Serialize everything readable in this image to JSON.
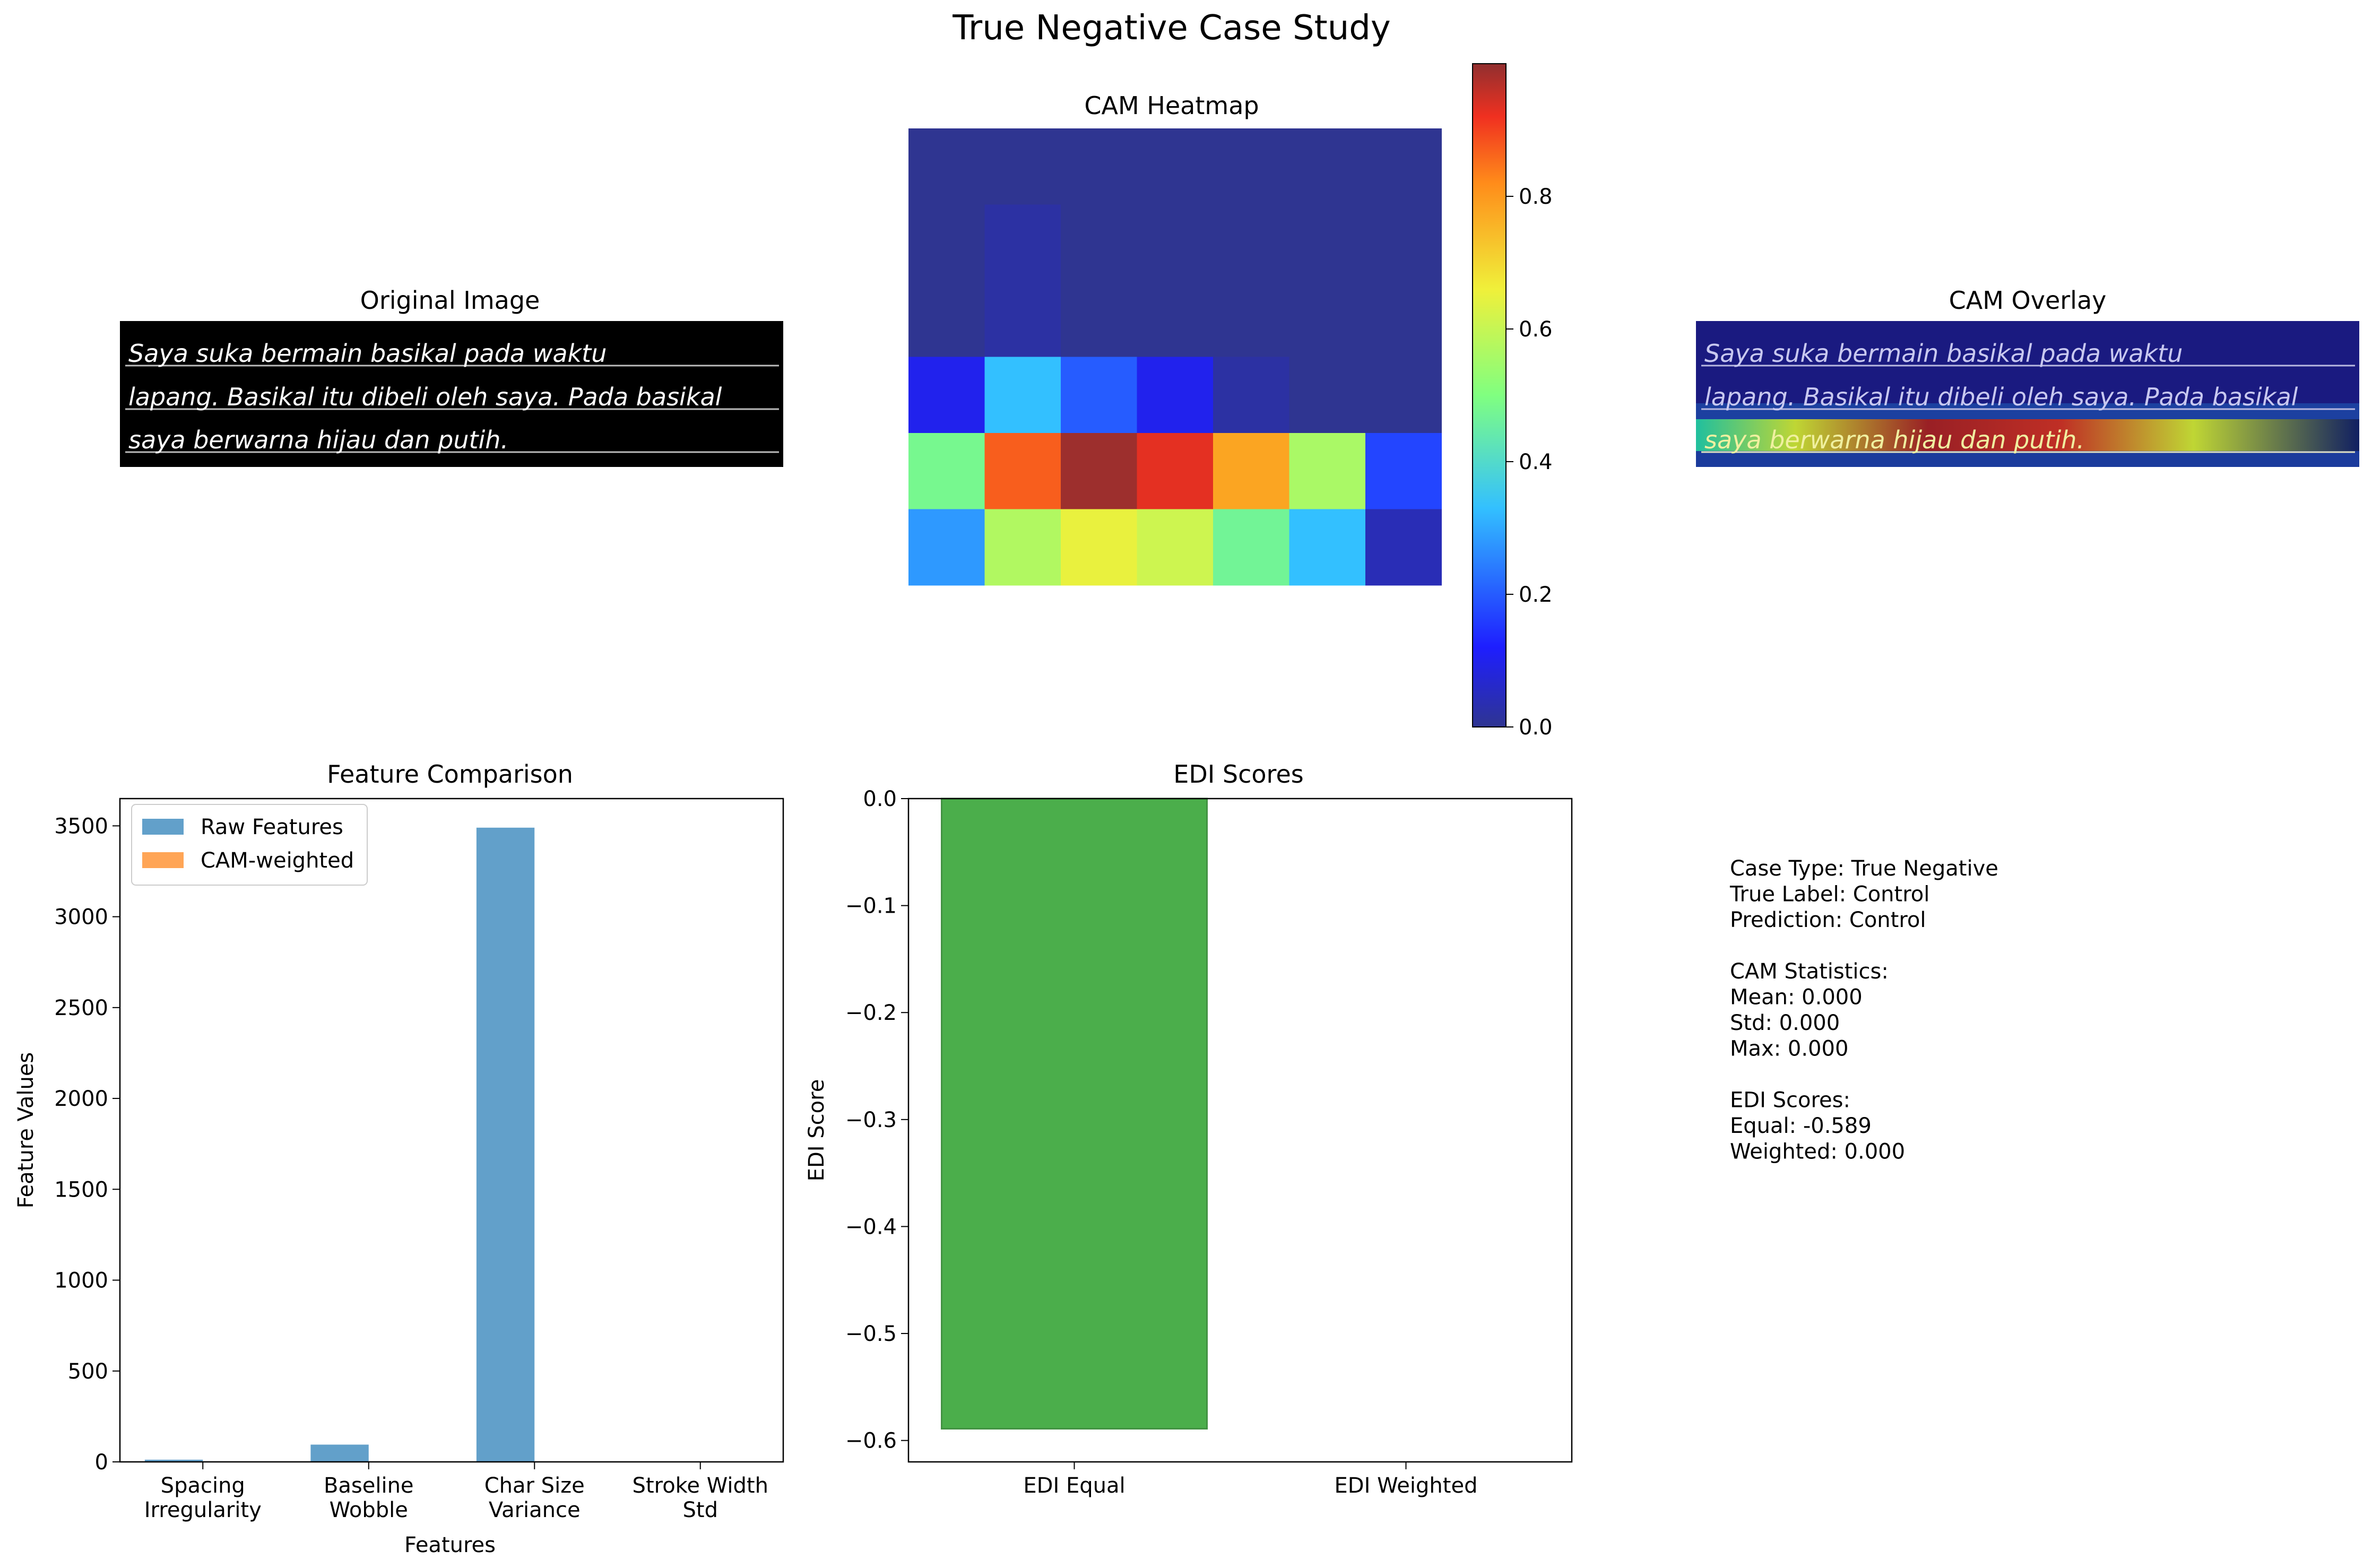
{
  "figure": {
    "suptitle": "True Negative Case Study"
  },
  "original_image": {
    "title": "Original Image",
    "lines": [
      "Saya suka bermain basikal pada waktu",
      "lapang. Basikal itu dibeli oleh saya. Pada basikal",
      "saya berwarna hijau dan putih."
    ]
  },
  "overlay_image": {
    "title": "CAM Overlay"
  },
  "colors": {
    "raw": "#1f77b4",
    "cam": "#ff7f0e",
    "edi": "#2ca02c",
    "edi_edge": "#238023"
  },
  "chart_data": [
    {
      "type": "heatmap",
      "title": "CAM Heatmap",
      "grid": [
        [
          0.0,
          0.0,
          0.0,
          0.0,
          0.0,
          0.0,
          0.0
        ],
        [
          0.0,
          0.02,
          0.0,
          0.0,
          0.0,
          0.0,
          0.0
        ],
        [
          0.0,
          0.02,
          0.0,
          0.0,
          0.0,
          0.0,
          0.0
        ],
        [
          0.1,
          0.33,
          0.2,
          0.1,
          0.02,
          0.0,
          0.0
        ],
        [
          0.48,
          0.87,
          0.99,
          0.93,
          0.78,
          0.56,
          0.17
        ],
        [
          0.28,
          0.57,
          0.65,
          0.61,
          0.47,
          0.33,
          0.04
        ]
      ],
      "colorbar": {
        "min": 0.0,
        "max": 1.0,
        "ticks": [
          "0.0",
          "0.2",
          "0.4",
          "0.6",
          "0.8"
        ],
        "cmap": "jet"
      }
    },
    {
      "type": "bar",
      "title": "Feature Comparison",
      "xlabel": "Features",
      "ylabel": "Feature Values",
      "categories": [
        "Spacing Irregularity",
        "Baseline Wobble",
        "Char Size Variance",
        "Stroke Width Std"
      ],
      "category_lines": [
        [
          "Spacing",
          "Irregularity"
        ],
        [
          "Baseline",
          "Wobble"
        ],
        [
          "Char Size",
          "Variance"
        ],
        [
          "Stroke Width",
          "Std"
        ]
      ],
      "series": [
        {
          "name": "Raw Features",
          "values": [
            12,
            95,
            3490,
            2
          ]
        },
        {
          "name": "CAM-weighted",
          "values": [
            0,
            0,
            0,
            0
          ]
        }
      ],
      "ylim": [
        0,
        3650
      ],
      "yticks": [
        0,
        500,
        1000,
        1500,
        2000,
        2500,
        3000,
        3500
      ],
      "legend": "top-left"
    },
    {
      "type": "bar",
      "title": "EDI Scores",
      "ylabel": "EDI Score",
      "categories": [
        "EDI Equal",
        "EDI Weighted"
      ],
      "values": [
        -0.589,
        0.0
      ],
      "ylim": [
        -0.62,
        0.0
      ],
      "yticks": [
        "0.0",
        "-0.1",
        "-0.2",
        "-0.3",
        "-0.4",
        "-0.5",
        "-0.6"
      ]
    }
  ],
  "info_text": {
    "lines": [
      "Case Type: True Negative",
      "True Label: Control",
      "Prediction: Control",
      "",
      "CAM Statistics:",
      "Mean: 0.000",
      "Std: 0.000",
      "Max: 0.000",
      "",
      "EDI Scores:",
      "Equal: -0.589",
      "Weighted: 0.000"
    ]
  }
}
